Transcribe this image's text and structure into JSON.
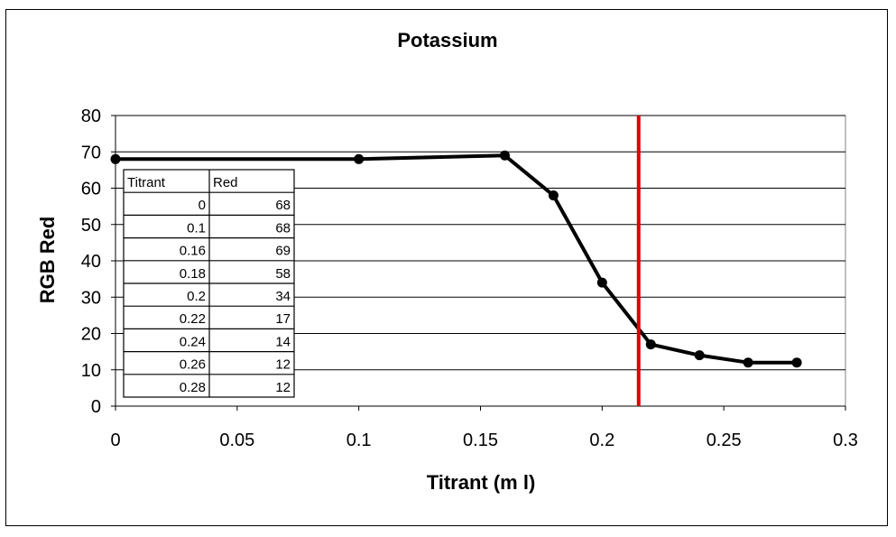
{
  "chart_data": {
    "type": "line",
    "title": "Potassium",
    "xlabel": "Titrant (m l)",
    "ylabel": "RGB Red",
    "xlim": [
      0,
      0.3
    ],
    "ylim": [
      0,
      80
    ],
    "x_ticks": [
      "0",
      "0.05",
      "0.1",
      "0.15",
      "0.2",
      "0.25",
      "0.3"
    ],
    "y_ticks": [
      "0",
      "10",
      "20",
      "30",
      "40",
      "50",
      "60",
      "70",
      "80"
    ],
    "grid": true,
    "series": [
      {
        "name": "Red",
        "x": [
          0,
          0.1,
          0.16,
          0.18,
          0.2,
          0.22,
          0.24,
          0.26,
          0.28
        ],
        "values": [
          68,
          68,
          69,
          58,
          34,
          17,
          14,
          12,
          12
        ]
      }
    ],
    "vertical_marker": {
      "x": 0.215,
      "color": "#e00000"
    },
    "data_table": {
      "headers": [
        "Titrant",
        "Red"
      ],
      "rows": [
        [
          "0",
          "68"
        ],
        [
          "0.1",
          "68"
        ],
        [
          "0.16",
          "69"
        ],
        [
          "0.18",
          "58"
        ],
        [
          "0.2",
          "34"
        ],
        [
          "0.22",
          "17"
        ],
        [
          "0.24",
          "14"
        ],
        [
          "0.26",
          "12"
        ],
        [
          "0.28",
          "12"
        ]
      ]
    },
    "colors": {
      "line": "#000000",
      "grid": "#000000",
      "marker_line": "#e00000"
    }
  }
}
